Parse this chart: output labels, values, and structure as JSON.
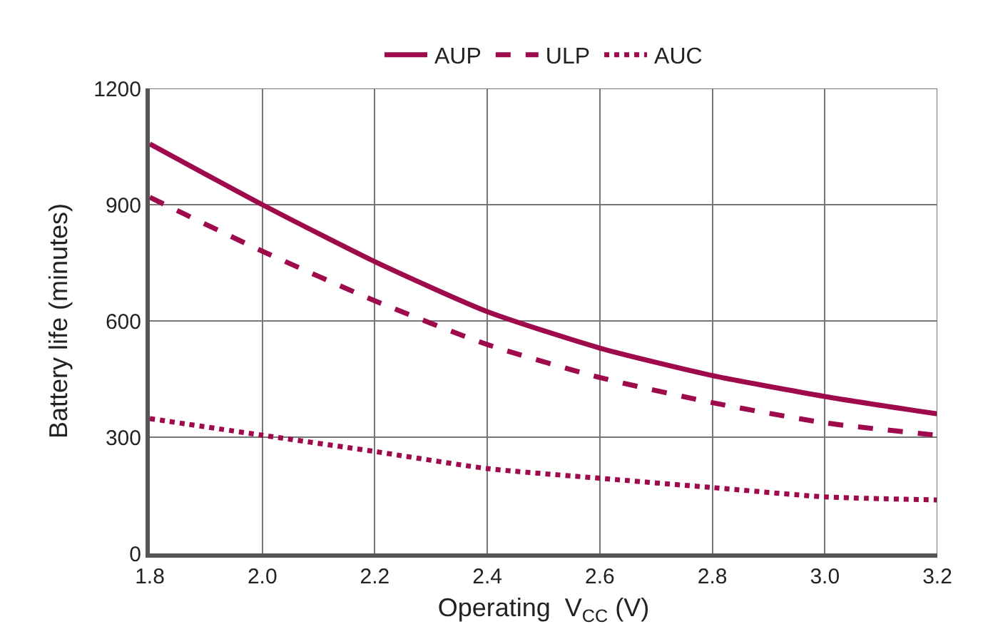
{
  "chart_data": {
    "type": "line",
    "xlabel": "Operating  V$_{CC}$ (V)",
    "ylabel": "Battery life (minutes)",
    "x": [
      1.8,
      2.0,
      2.2,
      2.4,
      2.6,
      2.8,
      3.0,
      3.2
    ],
    "series": [
      {
        "name": "AUP",
        "color": "#9e0a4b",
        "line_style": "solid",
        "values": [
          1057,
          900,
          753,
          624,
          530,
          459,
          405,
          360
        ]
      },
      {
        "name": "ULP",
        "color": "#9e0a4b",
        "line_style": "dashed",
        "values": [
          919,
          780,
          652,
          539,
          454,
          389,
          337,
          305
        ]
      },
      {
        "name": "AUC",
        "color": "#9e0a4b",
        "line_style": "dotted",
        "values": [
          348,
          305,
          263,
          219,
          194,
          170,
          146,
          138
        ]
      }
    ],
    "xlim": [
      1.8,
      3.2
    ],
    "xticks": [
      {
        "value": 1.8,
        "label": "1.8"
      },
      {
        "value": 2.0,
        "label": "2.0"
      },
      {
        "value": 2.2,
        "label": "2.2"
      },
      {
        "value": 2.4,
        "label": "2.4"
      },
      {
        "value": 2.6,
        "label": "2.6"
      },
      {
        "value": 2.8,
        "label": "2.8"
      },
      {
        "value": 3.0,
        "label": "3.0"
      },
      {
        "value": 3.2,
        "label": "3.2"
      }
    ],
    "ylim": [
      0,
      1200
    ],
    "yticks": [
      0,
      300,
      600,
      900,
      1200
    ],
    "grid": true,
    "legend": "top",
    "marker": "none"
  }
}
